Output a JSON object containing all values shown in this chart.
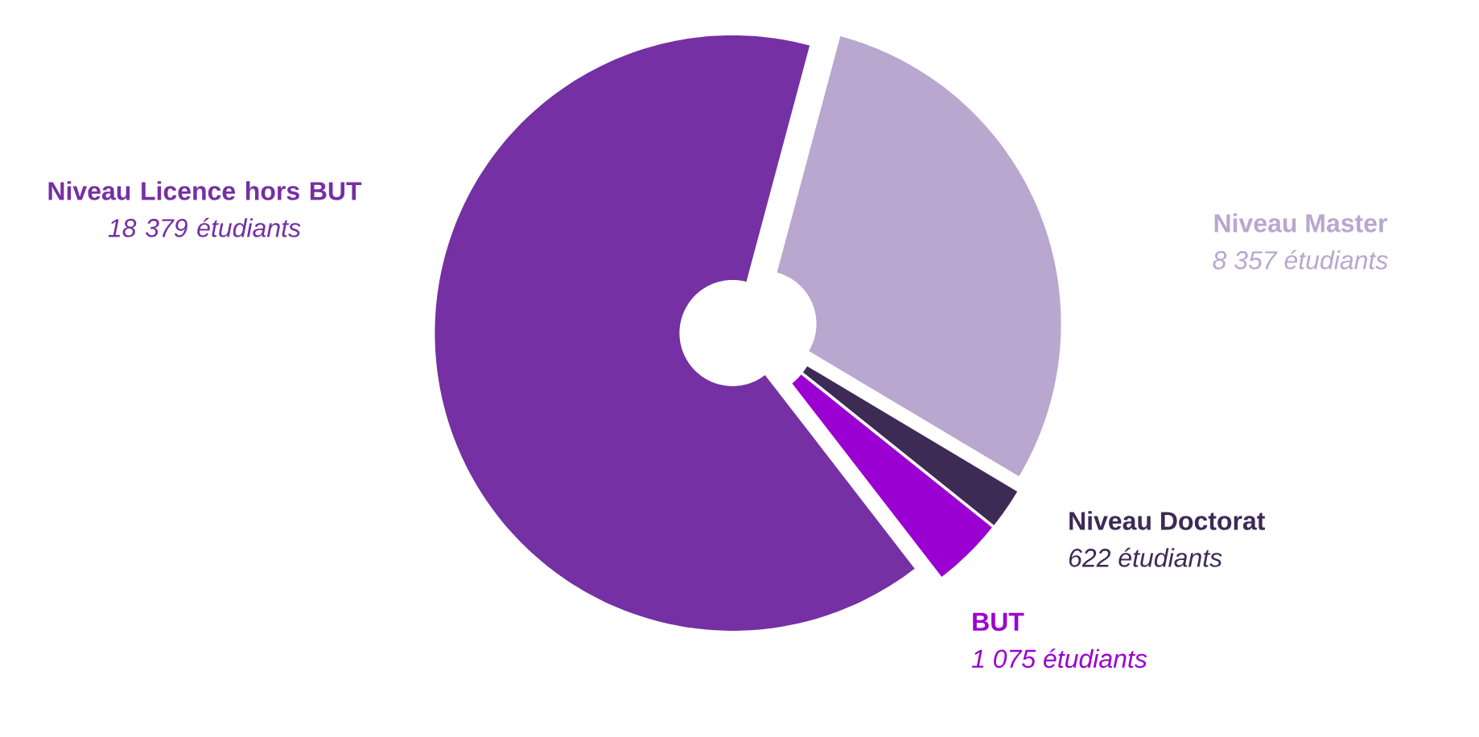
{
  "chart_data": {
    "type": "donut",
    "categories": [
      "Niveau Master",
      "Niveau Doctorat",
      "BUT",
      "Niveau Licence hors BUT"
    ],
    "values": [
      8357,
      622,
      1075,
      18379
    ],
    "value_labels": [
      "8 357 étudiants",
      "622 étudiants",
      "1 075 étudiants",
      "18 379 étudiants"
    ],
    "colors": [
      "#b9a7cf",
      "#3d2a55",
      "#9b00d2",
      "#7530a3"
    ]
  }
}
